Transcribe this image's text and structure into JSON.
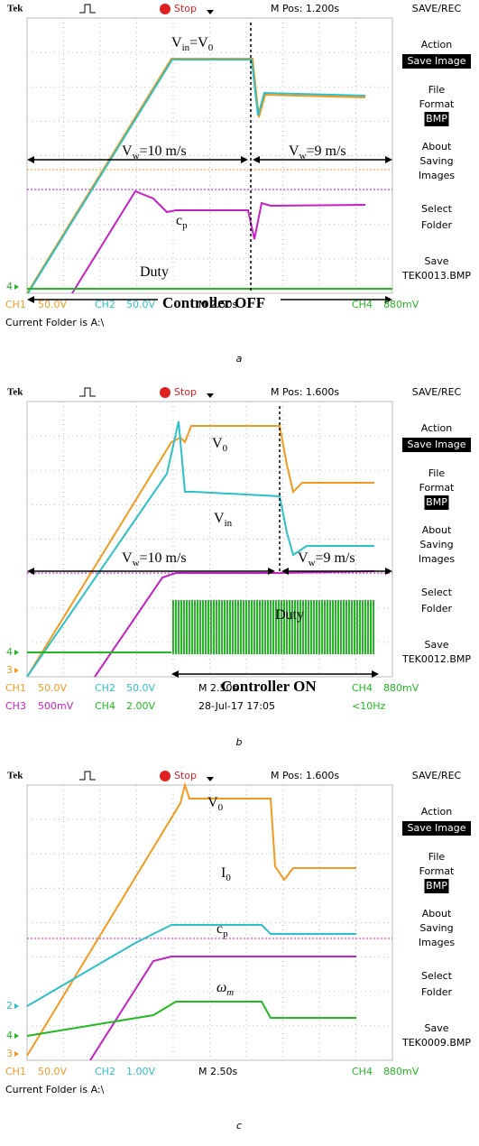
{
  "panels": [
    {
      "topbar": {
        "brand": "Tek",
        "state": "Stop",
        "mpos": "M Pos: 1.200s",
        "menu_title": "SAVE/REC"
      },
      "menu": [
        "Action",
        "Save Image",
        "File",
        "Format",
        "BMP",
        "About",
        "Saving",
        "Images",
        "Select",
        "Folder",
        "Save",
        "TEK0013.BMP"
      ],
      "status": [
        [
          "CH1",
          "50.0V",
          "CH2",
          "50.0V",
          "M 2.50s",
          "CH4",
          "880mV"
        ],
        [
          "Current Folder is A:\\"
        ]
      ],
      "markers": [
        "4"
      ],
      "annotations": [
        {
          "parts": [
            "V",
            "in",
            "=V",
            "0"
          ]
        },
        {
          "parts": [
            "V",
            "w",
            "=10 m/s"
          ]
        },
        {
          "parts": [
            "V",
            "w",
            "=9 m/s"
          ]
        },
        {
          "parts": [
            "c",
            "p"
          ]
        },
        {
          "parts": [
            "Duty"
          ]
        },
        {
          "parts": [
            "Controller OFF"
          ]
        }
      ],
      "caption": "a"
    },
    {
      "topbar": {
        "brand": "Tek",
        "state": "Stop",
        "mpos": "M Pos: 1.600s",
        "menu_title": "SAVE/REC"
      },
      "menu": [
        "Action",
        "Save Image",
        "File",
        "Format",
        "BMP",
        "About",
        "Saving",
        "Images",
        "Select",
        "Folder",
        "Save",
        "TEK0012.BMP"
      ],
      "status": [
        [
          "CH1",
          "50.0V",
          "CH2",
          "50.0V",
          "M 2.50s",
          "CH4",
          "880mV"
        ],
        [
          "CH3",
          "500mV",
          "CH4",
          "2.00V",
          "28-Jul-17 17:05",
          "<10Hz"
        ]
      ],
      "markers": [
        "4",
        "3"
      ],
      "annotations": [
        {
          "parts": [
            "V",
            "0"
          ]
        },
        {
          "parts": [
            "V",
            "in"
          ]
        },
        {
          "parts": [
            "V",
            "w",
            "=10 m/s"
          ]
        },
        {
          "parts": [
            "V",
            "w",
            "=9 m/s"
          ]
        },
        {
          "parts": [
            "Duty"
          ]
        },
        {
          "parts": [
            "Controller ON"
          ]
        }
      ],
      "caption": "b"
    },
    {
      "topbar": {
        "brand": "Tek",
        "state": "Stop",
        "mpos": "M Pos: 1.600s",
        "menu_title": "SAVE/REC"
      },
      "menu": [
        "Action",
        "Save Image",
        "File",
        "Format",
        "BMP",
        "About",
        "Saving",
        "Images",
        "Select",
        "Folder",
        "Save",
        "TEK0009.BMP"
      ],
      "status": [
        [
          "CH1",
          "50.0V",
          "CH2",
          "1.00V",
          "M 2.50s",
          "CH4",
          "880mV"
        ],
        [
          "Current Folder is A:\\"
        ]
      ],
      "markers": [
        "2",
        "4",
        "3"
      ],
      "annotations": [
        {
          "parts": [
            "V",
            "0"
          ]
        },
        {
          "parts": [
            "I",
            "0"
          ]
        },
        {
          "parts": [
            "c",
            "p"
          ]
        },
        {
          "parts": [
            "ω",
            "m"
          ]
        }
      ],
      "caption": "c"
    }
  ]
}
